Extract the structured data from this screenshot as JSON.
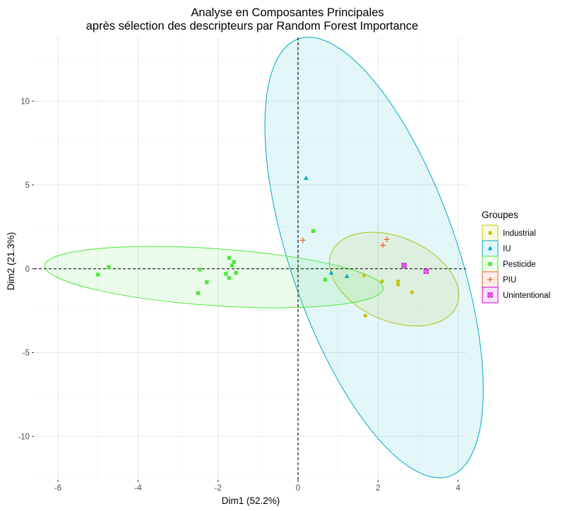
{
  "chart_data": {
    "type": "scatter",
    "title_line1": "Analyse en Composantes Principales",
    "title_line2": "après sélection des descripteurs par Random Forest Importance",
    "xlabel": "Dim1 (52.2%)",
    "ylabel": "Dim2 (21.3%)",
    "xlim": [
      -6.6,
      4.2
    ],
    "ylim": [
      -12.6,
      13.8
    ],
    "xticks": [
      -6,
      -4,
      -2,
      0,
      2,
      4
    ],
    "yticks": [
      -10,
      -5,
      0,
      5,
      10
    ],
    "xtick_labels": [
      "-6",
      "-4",
      "-2",
      "0",
      "2",
      "4"
    ],
    "ytick_labels": [
      "-10",
      "-5",
      "0",
      "5",
      "10"
    ],
    "grid": true,
    "reference_lines": {
      "x": 0,
      "y": 0,
      "style": "dashed"
    },
    "legend": {
      "title": "Groupes",
      "position": "right"
    },
    "series": [
      {
        "name": "Industrial",
        "color": "#c4c400",
        "marker": "circle",
        "points": [
          [
            1.65,
            -0.4
          ],
          [
            2.1,
            -0.75
          ],
          [
            2.5,
            -0.75
          ],
          [
            2.5,
            -0.95
          ],
          [
            2.85,
            -1.4
          ],
          [
            1.68,
            -2.8
          ]
        ],
        "ellipse": {
          "center": [
            2.4,
            -0.62
          ],
          "rx": 1.7,
          "ry": 2.5,
          "angle": 23.1
        }
      },
      {
        "name": "IU",
        "color": "#00a9c1",
        "marker": "triangle",
        "points": [
          [
            0.2,
            5.4
          ],
          [
            0.83,
            -0.25
          ],
          [
            1.22,
            -0.45
          ]
        ],
        "ellipse": {
          "center": [
            1.9,
            0.67
          ],
          "rx": 2.08,
          "ry": 13.8,
          "angle": -19.1
        }
      },
      {
        "name": "Pesticide",
        "color": "#4de83c",
        "marker": "square",
        "points": [
          [
            -5.0,
            -0.35
          ],
          [
            -4.73,
            0.1
          ],
          [
            -2.45,
            -0.05
          ],
          [
            -2.5,
            -1.45
          ],
          [
            -2.28,
            -0.8
          ],
          [
            -1.72,
            0.65
          ],
          [
            -1.65,
            0.2
          ],
          [
            -1.6,
            0.4
          ],
          [
            -1.55,
            -0.25
          ],
          [
            -1.8,
            -0.3
          ],
          [
            -1.72,
            -0.55
          ],
          [
            0.38,
            2.25
          ],
          [
            0.68,
            -0.65
          ]
        ],
        "ellipse": {
          "center": [
            -2.1,
            -0.5
          ],
          "rx": 4.24,
          "ry": 1.7,
          "angle": 3.9
        }
      },
      {
        "name": "PIU",
        "color": "#e8622a",
        "marker": "plus",
        "points": [
          [
            0.12,
            1.7
          ],
          [
            2.12,
            1.4
          ],
          [
            2.22,
            1.75
          ]
        ],
        "ellipse": null
      },
      {
        "name": "Unintentional",
        "color": "#d400d4",
        "marker": "boxx",
        "points": [
          [
            2.65,
            0.2
          ],
          [
            3.2,
            -0.15
          ]
        ],
        "ellipse": null
      }
    ]
  }
}
